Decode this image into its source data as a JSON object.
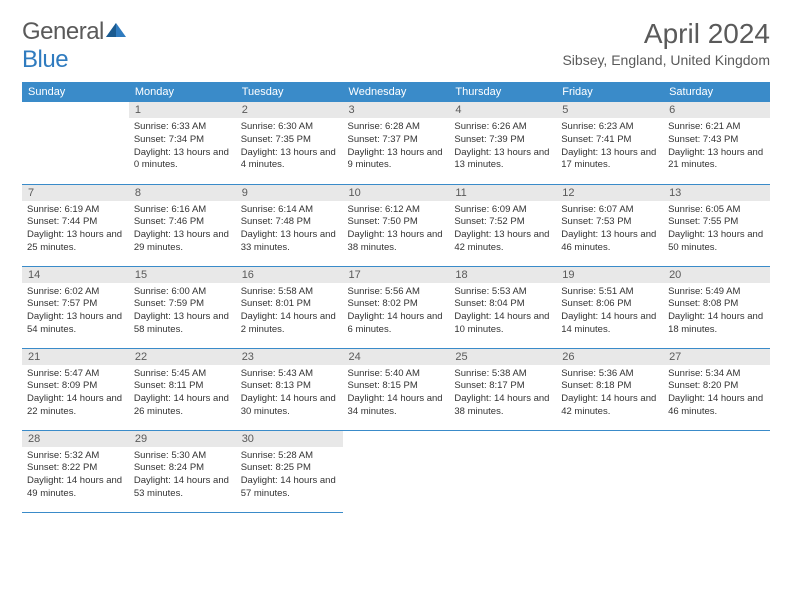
{
  "logo": {
    "text_general": "General",
    "text_blue": "Blue"
  },
  "title": "April 2024",
  "location": "Sibsey, England, United Kingdom",
  "colors": {
    "header_bg": "#3a8bc9",
    "header_text": "#ffffff",
    "daynum_bg": "#e8e8e8",
    "body_text": "#333333",
    "title_text": "#5a5a5a",
    "border": "#3a8bc9"
  },
  "day_headers": [
    "Sunday",
    "Monday",
    "Tuesday",
    "Wednesday",
    "Thursday",
    "Friday",
    "Saturday"
  ],
  "weeks": [
    [
      {
        "n": "",
        "sr": "",
        "ss": "",
        "dl": ""
      },
      {
        "n": "1",
        "sr": "Sunrise: 6:33 AM",
        "ss": "Sunset: 7:34 PM",
        "dl": "Daylight: 13 hours and 0 minutes."
      },
      {
        "n": "2",
        "sr": "Sunrise: 6:30 AM",
        "ss": "Sunset: 7:35 PM",
        "dl": "Daylight: 13 hours and 4 minutes."
      },
      {
        "n": "3",
        "sr": "Sunrise: 6:28 AM",
        "ss": "Sunset: 7:37 PM",
        "dl": "Daylight: 13 hours and 9 minutes."
      },
      {
        "n": "4",
        "sr": "Sunrise: 6:26 AM",
        "ss": "Sunset: 7:39 PM",
        "dl": "Daylight: 13 hours and 13 minutes."
      },
      {
        "n": "5",
        "sr": "Sunrise: 6:23 AM",
        "ss": "Sunset: 7:41 PM",
        "dl": "Daylight: 13 hours and 17 minutes."
      },
      {
        "n": "6",
        "sr": "Sunrise: 6:21 AM",
        "ss": "Sunset: 7:43 PM",
        "dl": "Daylight: 13 hours and 21 minutes."
      }
    ],
    [
      {
        "n": "7",
        "sr": "Sunrise: 6:19 AM",
        "ss": "Sunset: 7:44 PM",
        "dl": "Daylight: 13 hours and 25 minutes."
      },
      {
        "n": "8",
        "sr": "Sunrise: 6:16 AM",
        "ss": "Sunset: 7:46 PM",
        "dl": "Daylight: 13 hours and 29 minutes."
      },
      {
        "n": "9",
        "sr": "Sunrise: 6:14 AM",
        "ss": "Sunset: 7:48 PM",
        "dl": "Daylight: 13 hours and 33 minutes."
      },
      {
        "n": "10",
        "sr": "Sunrise: 6:12 AM",
        "ss": "Sunset: 7:50 PM",
        "dl": "Daylight: 13 hours and 38 minutes."
      },
      {
        "n": "11",
        "sr": "Sunrise: 6:09 AM",
        "ss": "Sunset: 7:52 PM",
        "dl": "Daylight: 13 hours and 42 minutes."
      },
      {
        "n": "12",
        "sr": "Sunrise: 6:07 AM",
        "ss": "Sunset: 7:53 PM",
        "dl": "Daylight: 13 hours and 46 minutes."
      },
      {
        "n": "13",
        "sr": "Sunrise: 6:05 AM",
        "ss": "Sunset: 7:55 PM",
        "dl": "Daylight: 13 hours and 50 minutes."
      }
    ],
    [
      {
        "n": "14",
        "sr": "Sunrise: 6:02 AM",
        "ss": "Sunset: 7:57 PM",
        "dl": "Daylight: 13 hours and 54 minutes."
      },
      {
        "n": "15",
        "sr": "Sunrise: 6:00 AM",
        "ss": "Sunset: 7:59 PM",
        "dl": "Daylight: 13 hours and 58 minutes."
      },
      {
        "n": "16",
        "sr": "Sunrise: 5:58 AM",
        "ss": "Sunset: 8:01 PM",
        "dl": "Daylight: 14 hours and 2 minutes."
      },
      {
        "n": "17",
        "sr": "Sunrise: 5:56 AM",
        "ss": "Sunset: 8:02 PM",
        "dl": "Daylight: 14 hours and 6 minutes."
      },
      {
        "n": "18",
        "sr": "Sunrise: 5:53 AM",
        "ss": "Sunset: 8:04 PM",
        "dl": "Daylight: 14 hours and 10 minutes."
      },
      {
        "n": "19",
        "sr": "Sunrise: 5:51 AM",
        "ss": "Sunset: 8:06 PM",
        "dl": "Daylight: 14 hours and 14 minutes."
      },
      {
        "n": "20",
        "sr": "Sunrise: 5:49 AM",
        "ss": "Sunset: 8:08 PM",
        "dl": "Daylight: 14 hours and 18 minutes."
      }
    ],
    [
      {
        "n": "21",
        "sr": "Sunrise: 5:47 AM",
        "ss": "Sunset: 8:09 PM",
        "dl": "Daylight: 14 hours and 22 minutes."
      },
      {
        "n": "22",
        "sr": "Sunrise: 5:45 AM",
        "ss": "Sunset: 8:11 PM",
        "dl": "Daylight: 14 hours and 26 minutes."
      },
      {
        "n": "23",
        "sr": "Sunrise: 5:43 AM",
        "ss": "Sunset: 8:13 PM",
        "dl": "Daylight: 14 hours and 30 minutes."
      },
      {
        "n": "24",
        "sr": "Sunrise: 5:40 AM",
        "ss": "Sunset: 8:15 PM",
        "dl": "Daylight: 14 hours and 34 minutes."
      },
      {
        "n": "25",
        "sr": "Sunrise: 5:38 AM",
        "ss": "Sunset: 8:17 PM",
        "dl": "Daylight: 14 hours and 38 minutes."
      },
      {
        "n": "26",
        "sr": "Sunrise: 5:36 AM",
        "ss": "Sunset: 8:18 PM",
        "dl": "Daylight: 14 hours and 42 minutes."
      },
      {
        "n": "27",
        "sr": "Sunrise: 5:34 AM",
        "ss": "Sunset: 8:20 PM",
        "dl": "Daylight: 14 hours and 46 minutes."
      }
    ],
    [
      {
        "n": "28",
        "sr": "Sunrise: 5:32 AM",
        "ss": "Sunset: 8:22 PM",
        "dl": "Daylight: 14 hours and 49 minutes."
      },
      {
        "n": "29",
        "sr": "Sunrise: 5:30 AM",
        "ss": "Sunset: 8:24 PM",
        "dl": "Daylight: 14 hours and 53 minutes."
      },
      {
        "n": "30",
        "sr": "Sunrise: 5:28 AM",
        "ss": "Sunset: 8:25 PM",
        "dl": "Daylight: 14 hours and 57 minutes."
      },
      {
        "n": "",
        "sr": "",
        "ss": "",
        "dl": ""
      },
      {
        "n": "",
        "sr": "",
        "ss": "",
        "dl": ""
      },
      {
        "n": "",
        "sr": "",
        "ss": "",
        "dl": ""
      },
      {
        "n": "",
        "sr": "",
        "ss": "",
        "dl": ""
      }
    ]
  ]
}
